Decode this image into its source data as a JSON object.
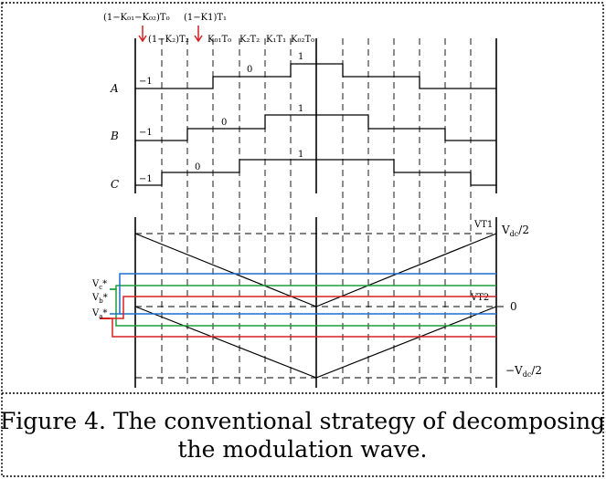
{
  "header": {
    "top_left": "(1−K₀₁−K₀₂)T₀",
    "top_right": "(1−K1)T₁",
    "second": "(1−K₂)T₂",
    "seq": [
      "K₀₁T₀",
      "K₂T₂",
      "K₁T₁",
      "K₀₂T₀"
    ]
  },
  "phases": [
    {
      "name": "A",
      "levels": [
        "−1",
        "0",
        "1"
      ]
    },
    {
      "name": "B",
      "levels": [
        "−1",
        "0",
        "1"
      ]
    },
    {
      "name": "C",
      "levels": [
        "−1",
        "0",
        "1"
      ]
    }
  ],
  "carrier": {
    "vt1": "VT1",
    "vt2": "VT2",
    "pos": "V",
    "pos_sub": "dc",
    "pos_tail": "/2",
    "neg": "−V",
    "neg_sub": "dc",
    "neg_tail": "/2",
    "zero": "0"
  },
  "refs": [
    {
      "base": "V",
      "sub": "c",
      "sup": "*",
      "color": "#1f6fd1"
    },
    {
      "base": "V",
      "sub": "b",
      "sup": "*",
      "color": "#1e9e3a"
    },
    {
      "base": "V",
      "sub": "a",
      "sup": "*",
      "color": "#d62020"
    }
  ],
  "caption": {
    "line1": "Figure 4. The conventional strategy of decomposing",
    "line2": "the modulation wave."
  }
}
